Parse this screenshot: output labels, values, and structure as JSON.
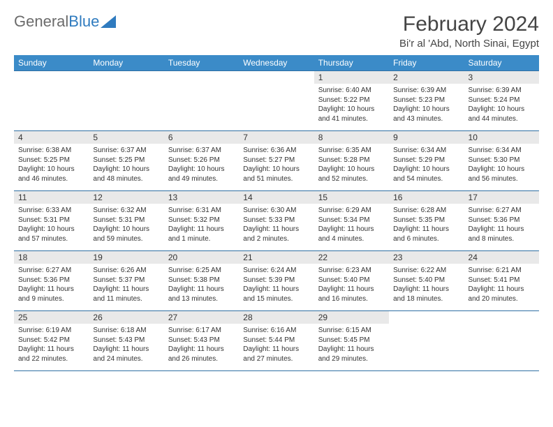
{
  "logo": {
    "text1": "General",
    "text2": "Blue"
  },
  "title": "February 2024",
  "location": "Bi'r al 'Abd, North Sinai, Egypt",
  "colors": {
    "header_bg": "#3b8bc8",
    "header_text": "#ffffff",
    "cell_border": "#2f6fa3",
    "daynum_bg": "#e9e9e9",
    "logo_gray": "#6b6b6b",
    "logo_blue": "#2f7bbf"
  },
  "weekdays": [
    "Sunday",
    "Monday",
    "Tuesday",
    "Wednesday",
    "Thursday",
    "Friday",
    "Saturday"
  ],
  "weeks": [
    [
      {
        "empty": true
      },
      {
        "empty": true
      },
      {
        "empty": true
      },
      {
        "empty": true
      },
      {
        "day": "1",
        "sunrise": "Sunrise: 6:40 AM",
        "sunset": "Sunset: 5:22 PM",
        "daylight1": "Daylight: 10 hours",
        "daylight2": "and 41 minutes."
      },
      {
        "day": "2",
        "sunrise": "Sunrise: 6:39 AM",
        "sunset": "Sunset: 5:23 PM",
        "daylight1": "Daylight: 10 hours",
        "daylight2": "and 43 minutes."
      },
      {
        "day": "3",
        "sunrise": "Sunrise: 6:39 AM",
        "sunset": "Sunset: 5:24 PM",
        "daylight1": "Daylight: 10 hours",
        "daylight2": "and 44 minutes."
      }
    ],
    [
      {
        "day": "4",
        "sunrise": "Sunrise: 6:38 AM",
        "sunset": "Sunset: 5:25 PM",
        "daylight1": "Daylight: 10 hours",
        "daylight2": "and 46 minutes."
      },
      {
        "day": "5",
        "sunrise": "Sunrise: 6:37 AM",
        "sunset": "Sunset: 5:25 PM",
        "daylight1": "Daylight: 10 hours",
        "daylight2": "and 48 minutes."
      },
      {
        "day": "6",
        "sunrise": "Sunrise: 6:37 AM",
        "sunset": "Sunset: 5:26 PM",
        "daylight1": "Daylight: 10 hours",
        "daylight2": "and 49 minutes."
      },
      {
        "day": "7",
        "sunrise": "Sunrise: 6:36 AM",
        "sunset": "Sunset: 5:27 PM",
        "daylight1": "Daylight: 10 hours",
        "daylight2": "and 51 minutes."
      },
      {
        "day": "8",
        "sunrise": "Sunrise: 6:35 AM",
        "sunset": "Sunset: 5:28 PM",
        "daylight1": "Daylight: 10 hours",
        "daylight2": "and 52 minutes."
      },
      {
        "day": "9",
        "sunrise": "Sunrise: 6:34 AM",
        "sunset": "Sunset: 5:29 PM",
        "daylight1": "Daylight: 10 hours",
        "daylight2": "and 54 minutes."
      },
      {
        "day": "10",
        "sunrise": "Sunrise: 6:34 AM",
        "sunset": "Sunset: 5:30 PM",
        "daylight1": "Daylight: 10 hours",
        "daylight2": "and 56 minutes."
      }
    ],
    [
      {
        "day": "11",
        "sunrise": "Sunrise: 6:33 AM",
        "sunset": "Sunset: 5:31 PM",
        "daylight1": "Daylight: 10 hours",
        "daylight2": "and 57 minutes."
      },
      {
        "day": "12",
        "sunrise": "Sunrise: 6:32 AM",
        "sunset": "Sunset: 5:31 PM",
        "daylight1": "Daylight: 10 hours",
        "daylight2": "and 59 minutes."
      },
      {
        "day": "13",
        "sunrise": "Sunrise: 6:31 AM",
        "sunset": "Sunset: 5:32 PM",
        "daylight1": "Daylight: 11 hours",
        "daylight2": "and 1 minute."
      },
      {
        "day": "14",
        "sunrise": "Sunrise: 6:30 AM",
        "sunset": "Sunset: 5:33 PM",
        "daylight1": "Daylight: 11 hours",
        "daylight2": "and 2 minutes."
      },
      {
        "day": "15",
        "sunrise": "Sunrise: 6:29 AM",
        "sunset": "Sunset: 5:34 PM",
        "daylight1": "Daylight: 11 hours",
        "daylight2": "and 4 minutes."
      },
      {
        "day": "16",
        "sunrise": "Sunrise: 6:28 AM",
        "sunset": "Sunset: 5:35 PM",
        "daylight1": "Daylight: 11 hours",
        "daylight2": "and 6 minutes."
      },
      {
        "day": "17",
        "sunrise": "Sunrise: 6:27 AM",
        "sunset": "Sunset: 5:36 PM",
        "daylight1": "Daylight: 11 hours",
        "daylight2": "and 8 minutes."
      }
    ],
    [
      {
        "day": "18",
        "sunrise": "Sunrise: 6:27 AM",
        "sunset": "Sunset: 5:36 PM",
        "daylight1": "Daylight: 11 hours",
        "daylight2": "and 9 minutes."
      },
      {
        "day": "19",
        "sunrise": "Sunrise: 6:26 AM",
        "sunset": "Sunset: 5:37 PM",
        "daylight1": "Daylight: 11 hours",
        "daylight2": "and 11 minutes."
      },
      {
        "day": "20",
        "sunrise": "Sunrise: 6:25 AM",
        "sunset": "Sunset: 5:38 PM",
        "daylight1": "Daylight: 11 hours",
        "daylight2": "and 13 minutes."
      },
      {
        "day": "21",
        "sunrise": "Sunrise: 6:24 AM",
        "sunset": "Sunset: 5:39 PM",
        "daylight1": "Daylight: 11 hours",
        "daylight2": "and 15 minutes."
      },
      {
        "day": "22",
        "sunrise": "Sunrise: 6:23 AM",
        "sunset": "Sunset: 5:40 PM",
        "daylight1": "Daylight: 11 hours",
        "daylight2": "and 16 minutes."
      },
      {
        "day": "23",
        "sunrise": "Sunrise: 6:22 AM",
        "sunset": "Sunset: 5:40 PM",
        "daylight1": "Daylight: 11 hours",
        "daylight2": "and 18 minutes."
      },
      {
        "day": "24",
        "sunrise": "Sunrise: 6:21 AM",
        "sunset": "Sunset: 5:41 PM",
        "daylight1": "Daylight: 11 hours",
        "daylight2": "and 20 minutes."
      }
    ],
    [
      {
        "day": "25",
        "sunrise": "Sunrise: 6:19 AM",
        "sunset": "Sunset: 5:42 PM",
        "daylight1": "Daylight: 11 hours",
        "daylight2": "and 22 minutes."
      },
      {
        "day": "26",
        "sunrise": "Sunrise: 6:18 AM",
        "sunset": "Sunset: 5:43 PM",
        "daylight1": "Daylight: 11 hours",
        "daylight2": "and 24 minutes."
      },
      {
        "day": "27",
        "sunrise": "Sunrise: 6:17 AM",
        "sunset": "Sunset: 5:43 PM",
        "daylight1": "Daylight: 11 hours",
        "daylight2": "and 26 minutes."
      },
      {
        "day": "28",
        "sunrise": "Sunrise: 6:16 AM",
        "sunset": "Sunset: 5:44 PM",
        "daylight1": "Daylight: 11 hours",
        "daylight2": "and 27 minutes."
      },
      {
        "day": "29",
        "sunrise": "Sunrise: 6:15 AM",
        "sunset": "Sunset: 5:45 PM",
        "daylight1": "Daylight: 11 hours",
        "daylight2": "and 29 minutes."
      },
      {
        "empty": true
      },
      {
        "empty": true
      }
    ]
  ]
}
